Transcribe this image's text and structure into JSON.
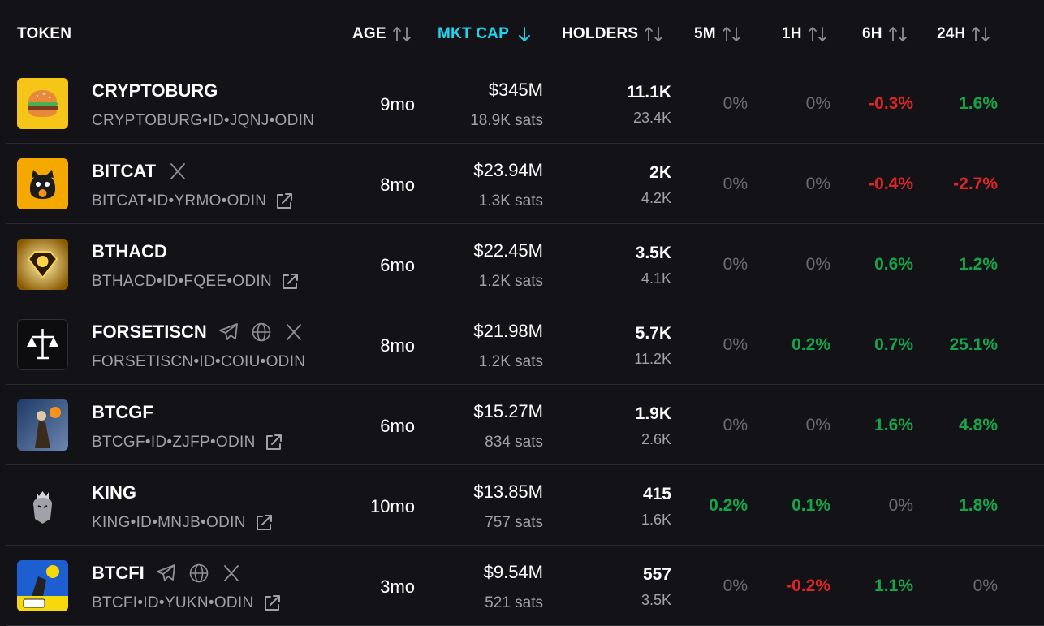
{
  "header": {
    "token": "TOKEN",
    "age": "AGE",
    "mktcap": "MKT CAP",
    "holders": "HOLDERS",
    "m5": "5M",
    "h1": "1H",
    "h6": "6H",
    "h24": "24H",
    "active_sort": "mktcap",
    "active_color": "#22d3ee"
  },
  "colors": {
    "positive": "#16a34a",
    "negative": "#dc2626",
    "neutral": "#6b6b73"
  },
  "rows": [
    {
      "name": "CRYPTOBURG",
      "id": "CRYPTOBURG•ID•JQNJ•ODIN",
      "age": "9mo",
      "mktcap": "$345M",
      "sats": "18.9K sats",
      "holders": "11.1K",
      "holders2": "23.4K",
      "m5": "0%",
      "h1": "0%",
      "h6": "-0.3%",
      "h24": "1.6%",
      "icons": [],
      "external": false
    },
    {
      "name": "BITCAT",
      "id": "BITCAT•ID•YRMO•ODIN",
      "age": "8mo",
      "mktcap": "$23.94M",
      "sats": "1.3K sats",
      "holders": "2K",
      "holders2": "4.2K",
      "m5": "0%",
      "h1": "0%",
      "h6": "-0.4%",
      "h24": "-2.7%",
      "icons": [
        "x-icon"
      ],
      "external": true
    },
    {
      "name": "BTHACD",
      "id": "BTHACD•ID•FQEE•ODIN",
      "age": "6mo",
      "mktcap": "$22.45M",
      "sats": "1.2K sats",
      "holders": "3.5K",
      "holders2": "4.1K",
      "m5": "0%",
      "h1": "0%",
      "h6": "0.6%",
      "h24": "1.2%",
      "icons": [],
      "external": true
    },
    {
      "name": "FORSETISCN",
      "id": "FORSETISCN•ID•COIU•ODIN",
      "age": "8mo",
      "mktcap": "$21.98M",
      "sats": "1.2K sats",
      "holders": "5.7K",
      "holders2": "11.2K",
      "m5": "0%",
      "h1": "0.2%",
      "h6": "0.7%",
      "h24": "25.1%",
      "icons": [
        "telegram-icon",
        "globe-icon",
        "x-icon"
      ],
      "external": false
    },
    {
      "name": "BTCGF",
      "id": "BTCGF•ID•ZJFP•ODIN",
      "age": "6mo",
      "mktcap": "$15.27M",
      "sats": "834 sats",
      "holders": "1.9K",
      "holders2": "2.6K",
      "m5": "0%",
      "h1": "0%",
      "h6": "1.6%",
      "h24": "4.8%",
      "icons": [],
      "external": true
    },
    {
      "name": "KING",
      "id": "KING•ID•MNJB•ODIN",
      "age": "10mo",
      "mktcap": "$13.85M",
      "sats": "757 sats",
      "holders": "415",
      "holders2": "1.6K",
      "m5": "0.2%",
      "h1": "0.1%",
      "h6": "0%",
      "h24": "1.8%",
      "icons": [],
      "external": true
    },
    {
      "name": "BTCFI",
      "id": "BTCFI•ID•YUKN•ODIN",
      "age": "3mo",
      "mktcap": "$9.54M",
      "sats": "521 sats",
      "holders": "557",
      "holders2": "3.5K",
      "m5": "0%",
      "h1": "-0.2%",
      "h6": "1.1%",
      "h24": "0%",
      "icons": [
        "telegram-icon",
        "globe-icon",
        "x-icon"
      ],
      "external": true
    }
  ]
}
